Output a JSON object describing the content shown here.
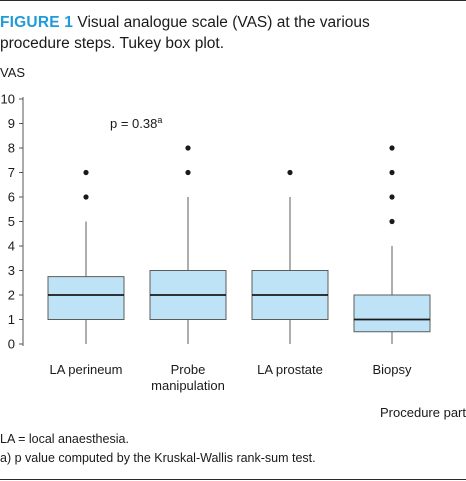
{
  "figure": {
    "label": "FIGURE 1",
    "caption": " Visual analogue scale (VAS) at the various procedure steps. Tukey box plot.",
    "footnotes": [
      "LA = local anaesthesia.",
      "a) p value computed by the Kruskal-Wallis rank-sum test."
    ]
  },
  "chart_data": {
    "type": "box",
    "categories": [
      "LA perineum",
      "Probe manipulation",
      "LA prostate",
      "Biopsy"
    ],
    "category_label_lines": [
      [
        "LA perineum"
      ],
      [
        "Probe",
        "manipulation"
      ],
      [
        "LA prostate"
      ],
      [
        "Biopsy"
      ]
    ],
    "boxes": [
      {
        "category": "LA perineum",
        "whisker_low": 0,
        "q1": 1,
        "median": 2,
        "q3": 2.75,
        "whisker_high": 5,
        "outliers": [
          6,
          7
        ]
      },
      {
        "category": "Probe manipulation",
        "whisker_low": 0,
        "q1": 1,
        "median": 2,
        "q3": 3,
        "whisker_high": 6,
        "outliers": [
          7,
          8
        ]
      },
      {
        "category": "LA prostate",
        "whisker_low": 0,
        "q1": 1,
        "median": 2,
        "q3": 3,
        "whisker_high": 6,
        "outliers": [
          7
        ]
      },
      {
        "category": "Biopsy",
        "whisker_low": 0,
        "q1": 0.5,
        "median": 1,
        "q3": 2,
        "whisker_high": 4,
        "outliers": [
          5,
          6,
          7,
          8
        ]
      }
    ],
    "ylabel": "VAS",
    "xlabel": "Procedure part",
    "ylim": [
      0,
      10
    ],
    "yticks": [
      0,
      1,
      2,
      3,
      4,
      5,
      6,
      7,
      8,
      9,
      10
    ],
    "annotation": {
      "text": "p = 0.38",
      "superscript": "a",
      "x_category_index": 0.8,
      "y": 9
    },
    "grid": false,
    "colors": {
      "box_fill": "#bfe3f6",
      "box_stroke": "#5c5c5c",
      "median": "#1a1a1a",
      "axis": "#555555",
      "accent": "#1f9bd7"
    }
  }
}
